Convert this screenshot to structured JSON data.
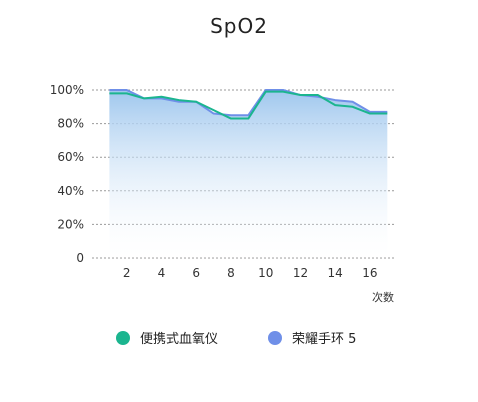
{
  "colors": {
    "series1": "#1bb58f",
    "series2": "#6f8fe8",
    "area_top": "#9fc7ee",
    "area_bottom": "#ffffff",
    "grid": "#999999"
  },
  "chart_data": {
    "type": "line",
    "title": "SpO2",
    "xlabel": "次数",
    "ylabel": "",
    "x": [
      1,
      2,
      3,
      4,
      5,
      6,
      7,
      8,
      9,
      10,
      11,
      12,
      13,
      14,
      15,
      16,
      17
    ],
    "xlim": [
      0,
      17.5
    ],
    "ylim": [
      0,
      100
    ],
    "x_ticks": [
      2,
      4,
      6,
      8,
      10,
      12,
      14,
      16
    ],
    "y_ticks": [
      0,
      20,
      40,
      60,
      80,
      100
    ],
    "y_tick_labels": [
      "0",
      "20%",
      "40%",
      "60%",
      "80%",
      "100%"
    ],
    "grid": "horizontal dashed",
    "legend_position": "bottom",
    "series": [
      {
        "name": "便携式血氧仪",
        "values": [
          98,
          98,
          95,
          96,
          94,
          93,
          88,
          83,
          83,
          99,
          99,
          97,
          97,
          91,
          90,
          86,
          86
        ]
      },
      {
        "name": "荣耀手环 5",
        "values": [
          100,
          100,
          95,
          95,
          93,
          93,
          86,
          85,
          85,
          100,
          100,
          97,
          96,
          94,
          93,
          87,
          87
        ]
      }
    ]
  }
}
